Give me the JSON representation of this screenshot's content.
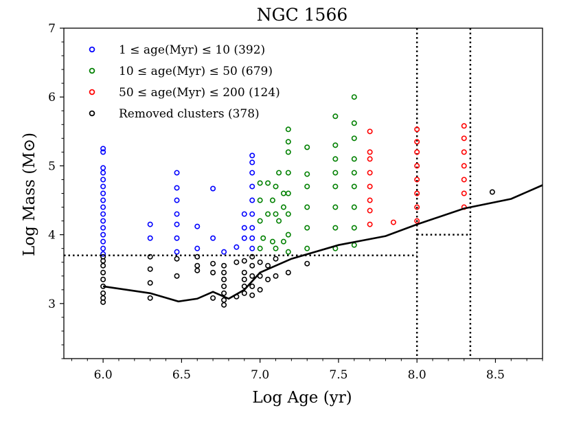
{
  "chart_data": {
    "type": "scatter",
    "title": "NGC 1566",
    "xlabel": "Log Age (yr)",
    "ylabel": "Log Mass (M⊙)",
    "xlim": [
      5.75,
      8.8
    ],
    "ylim": [
      2.2,
      7.0
    ],
    "xticks": [
      "6.0",
      "6.5",
      "7.0",
      "7.5",
      "8.0",
      "8.5"
    ],
    "yticks": [
      "3",
      "4",
      "5",
      "6",
      "7"
    ],
    "legend_position": "upper-left",
    "series": [
      {
        "name": "1 ≤ age(Myr) ≤ 10 (392)",
        "color": "#0000ff",
        "points": [
          [
            6.0,
            3.72
          ],
          [
            6.0,
            3.8
          ],
          [
            6.0,
            3.9
          ],
          [
            6.0,
            4.0
          ],
          [
            6.0,
            4.1
          ],
          [
            6.0,
            4.2
          ],
          [
            6.0,
            4.3
          ],
          [
            6.0,
            4.4
          ],
          [
            6.0,
            4.5
          ],
          [
            6.0,
            4.6
          ],
          [
            6.0,
            4.7
          ],
          [
            6.0,
            4.8
          ],
          [
            6.0,
            4.9
          ],
          [
            6.0,
            4.97
          ],
          [
            6.0,
            5.2
          ],
          [
            6.0,
            5.25
          ],
          [
            6.3,
            3.95
          ],
          [
            6.3,
            4.15
          ],
          [
            6.47,
            3.75
          ],
          [
            6.47,
            3.95
          ],
          [
            6.47,
            4.15
          ],
          [
            6.47,
            4.3
          ],
          [
            6.47,
            4.5
          ],
          [
            6.47,
            4.68
          ],
          [
            6.47,
            4.9
          ],
          [
            6.6,
            3.8
          ],
          [
            6.6,
            4.12
          ],
          [
            6.7,
            3.95
          ],
          [
            6.7,
            4.67
          ],
          [
            6.77,
            3.75
          ],
          [
            6.85,
            3.82
          ],
          [
            6.9,
            3.95
          ],
          [
            6.9,
            4.1
          ],
          [
            6.9,
            4.3
          ],
          [
            6.95,
            3.8
          ],
          [
            6.95,
            3.95
          ],
          [
            6.95,
            4.1
          ],
          [
            6.95,
            4.3
          ],
          [
            6.95,
            4.5
          ],
          [
            6.95,
            4.7
          ],
          [
            6.95,
            4.9
          ],
          [
            6.95,
            5.05
          ],
          [
            6.95,
            5.15
          ]
        ]
      },
      {
        "name": "10 ≤ age(Myr) ≤ 50 (679)",
        "color": "#008000",
        "points": [
          [
            7.0,
            3.8
          ],
          [
            7.0,
            4.2
          ],
          [
            7.0,
            4.5
          ],
          [
            7.0,
            4.75
          ],
          [
            7.02,
            3.95
          ],
          [
            7.05,
            4.3
          ],
          [
            7.05,
            4.75
          ],
          [
            7.08,
            3.9
          ],
          [
            7.08,
            4.5
          ],
          [
            7.1,
            3.8
          ],
          [
            7.1,
            4.3
          ],
          [
            7.1,
            4.7
          ],
          [
            7.12,
            4.2
          ],
          [
            7.12,
            4.9
          ],
          [
            7.15,
            3.9
          ],
          [
            7.15,
            4.4
          ],
          [
            7.15,
            4.6
          ],
          [
            7.18,
            3.75
          ],
          [
            7.18,
            4.0
          ],
          [
            7.18,
            4.3
          ],
          [
            7.18,
            4.6
          ],
          [
            7.18,
            4.9
          ],
          [
            7.18,
            5.2
          ],
          [
            7.18,
            5.35
          ],
          [
            7.18,
            5.53
          ],
          [
            7.3,
            3.8
          ],
          [
            7.3,
            4.1
          ],
          [
            7.3,
            4.4
          ],
          [
            7.3,
            4.7
          ],
          [
            7.3,
            4.88
          ],
          [
            7.3,
            5.27
          ],
          [
            7.48,
            3.8
          ],
          [
            7.48,
            4.1
          ],
          [
            7.48,
            4.4
          ],
          [
            7.48,
            4.7
          ],
          [
            7.48,
            4.9
          ],
          [
            7.48,
            5.1
          ],
          [
            7.48,
            5.3
          ],
          [
            7.48,
            5.72
          ],
          [
            7.6,
            3.85
          ],
          [
            7.6,
            4.1
          ],
          [
            7.6,
            4.4
          ],
          [
            7.6,
            4.7
          ],
          [
            7.6,
            4.9
          ],
          [
            7.6,
            5.1
          ],
          [
            7.6,
            5.4
          ],
          [
            7.6,
            5.62
          ],
          [
            7.6,
            6.0
          ]
        ]
      },
      {
        "name": "50 ≤ age(Myr) ≤ 200 (124)",
        "color": "#ff0000",
        "points": [
          [
            7.7,
            4.15
          ],
          [
            7.7,
            4.35
          ],
          [
            7.7,
            4.5
          ],
          [
            7.7,
            4.7
          ],
          [
            7.7,
            4.9
          ],
          [
            7.7,
            5.1
          ],
          [
            7.7,
            5.2
          ],
          [
            7.7,
            5.5
          ],
          [
            7.85,
            4.18
          ],
          [
            8.0,
            4.2
          ],
          [
            8.0,
            4.4
          ],
          [
            8.0,
            4.6
          ],
          [
            8.0,
            4.8
          ],
          [
            8.0,
            5.0
          ],
          [
            8.0,
            5.2
          ],
          [
            8.0,
            5.35
          ],
          [
            8.0,
            5.53
          ],
          [
            8.3,
            4.4
          ],
          [
            8.3,
            4.6
          ],
          [
            8.3,
            4.8
          ],
          [
            8.3,
            5.0
          ],
          [
            8.3,
            5.2
          ],
          [
            8.3,
            5.4
          ],
          [
            8.3,
            5.58
          ]
        ]
      },
      {
        "name": "Removed clusters (378)",
        "color": "#000000",
        "points": [
          [
            6.0,
            3.02
          ],
          [
            6.0,
            3.08
          ],
          [
            6.0,
            3.15
          ],
          [
            6.0,
            3.25
          ],
          [
            6.0,
            3.35
          ],
          [
            6.0,
            3.45
          ],
          [
            6.0,
            3.55
          ],
          [
            6.0,
            3.62
          ],
          [
            6.0,
            3.68
          ],
          [
            6.3,
            3.08
          ],
          [
            6.3,
            3.3
          ],
          [
            6.3,
            3.5
          ],
          [
            6.3,
            3.68
          ],
          [
            6.47,
            3.4
          ],
          [
            6.47,
            3.65
          ],
          [
            6.6,
            3.48
          ],
          [
            6.6,
            3.55
          ],
          [
            6.6,
            3.68
          ],
          [
            6.7,
            3.08
          ],
          [
            6.7,
            3.45
          ],
          [
            6.7,
            3.58
          ],
          [
            6.77,
            2.98
          ],
          [
            6.77,
            3.05
          ],
          [
            6.77,
            3.15
          ],
          [
            6.77,
            3.25
          ],
          [
            6.77,
            3.35
          ],
          [
            6.77,
            3.45
          ],
          [
            6.77,
            3.55
          ],
          [
            6.85,
            3.1
          ],
          [
            6.85,
            3.6
          ],
          [
            6.9,
            3.15
          ],
          [
            6.9,
            3.25
          ],
          [
            6.9,
            3.35
          ],
          [
            6.9,
            3.45
          ],
          [
            6.9,
            3.62
          ],
          [
            6.95,
            3.12
          ],
          [
            6.95,
            3.25
          ],
          [
            6.95,
            3.4
          ],
          [
            6.95,
            3.55
          ],
          [
            6.95,
            3.68
          ],
          [
            7.0,
            3.2
          ],
          [
            7.0,
            3.4
          ],
          [
            7.0,
            3.6
          ],
          [
            7.05,
            3.35
          ],
          [
            7.05,
            3.55
          ],
          [
            7.1,
            3.4
          ],
          [
            7.1,
            3.65
          ],
          [
            7.18,
            3.45
          ],
          [
            7.3,
            3.58
          ],
          [
            8.48,
            4.62
          ]
        ]
      }
    ],
    "completeness_curve": {
      "name": "completeness limit",
      "x": [
        6.0,
        6.3,
        6.48,
        6.6,
        6.7,
        6.8,
        6.9,
        7.0,
        7.2,
        7.5,
        7.8,
        8.0,
        8.3,
        8.6,
        8.8
      ],
      "y": [
        3.25,
        3.15,
        3.03,
        3.07,
        3.17,
        3.07,
        3.2,
        3.45,
        3.65,
        3.85,
        3.98,
        4.15,
        4.38,
        4.52,
        4.72
      ]
    },
    "reference_lines": {
      "mass_cut_low": 3.7,
      "mass_cut_high": 4.0,
      "age_cut_1": 8.0,
      "age_cut_2": 8.34
    }
  }
}
